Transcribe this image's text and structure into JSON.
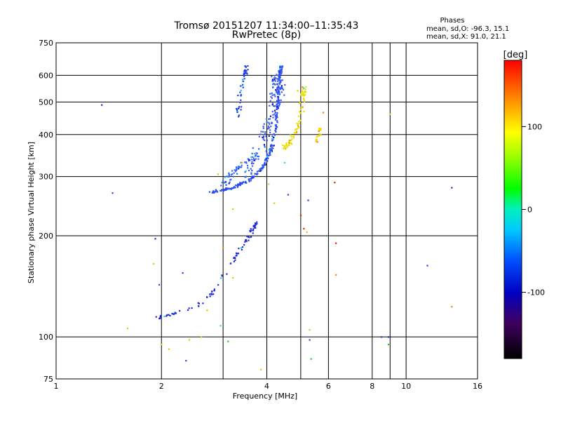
{
  "chart_data": {
    "type": "scatter",
    "title": "Tromsø 20151207 11:34:00–11:35:43",
    "subtitle": "RwPretec (8p)",
    "xlabel": "Frequency [MHz]",
    "ylabel": "Stationary phase Virtual Height [km]",
    "x_scale": "log",
    "y_scale": "log",
    "xlim": [
      1,
      16
    ],
    "ylim": [
      75,
      750
    ],
    "x_ticks": [
      1,
      2,
      4,
      6,
      8,
      10,
      16
    ],
    "x_tick_labels": [
      "1",
      "2",
      "4",
      "6",
      "8",
      "10",
      "16"
    ],
    "y_ticks": [
      75,
      100,
      200,
      300,
      400,
      500,
      600,
      750
    ],
    "y_tick_labels": [
      "75",
      "100",
      "200",
      "300",
      "400",
      "500",
      "600",
      "750"
    ],
    "grid": true,
    "phase_box": {
      "title": "Phases",
      "line_o": "mean, sd,O: -96.3, 15.1",
      "line_x": "mean, sd,X:  91.0, 21.1"
    },
    "colorbar": {
      "label": "[deg]",
      "range": [
        -180,
        180
      ],
      "ticks": [
        100,
        0,
        -100
      ],
      "tick_labels": [
        "100",
        "0",
        "-100"
      ]
    },
    "traces": [
      {
        "name": "o-lower",
        "phase": -110,
        "color": "#1f2be0",
        "n": 90,
        "spread": 0.012,
        "path": [
          [
            1.95,
            114
          ],
          [
            2.15,
            117
          ],
          [
            2.5,
            123
          ],
          [
            2.8,
            135
          ],
          [
            3.1,
            160
          ],
          [
            3.4,
            185
          ],
          [
            3.6,
            205
          ],
          [
            3.75,
            220
          ]
        ]
      },
      {
        "name": "o-upper",
        "phase": -100,
        "color": "#2a4cf0",
        "n": 260,
        "spread": 0.01,
        "path": [
          [
            2.75,
            268
          ],
          [
            3.2,
            278
          ],
          [
            3.6,
            295
          ],
          [
            3.9,
            320
          ],
          [
            4.1,
            360
          ],
          [
            4.25,
            420
          ],
          [
            4.3,
            500
          ],
          [
            4.35,
            600
          ],
          [
            4.4,
            640
          ]
        ]
      },
      {
        "name": "o-cloud",
        "phase": -105,
        "color": "#3a5ef5",
        "n": 140,
        "spread": 0.04,
        "path": [
          [
            3.5,
            300
          ],
          [
            4.0,
            400
          ],
          [
            4.3,
            520
          ],
          [
            4.3,
            600
          ]
        ]
      },
      {
        "name": "o-spread",
        "phase": -95,
        "color": "#3366ff",
        "n": 60,
        "spread": 0.025,
        "path": [
          [
            3.0,
            280
          ],
          [
            3.3,
            320
          ],
          [
            3.8,
            350
          ]
        ]
      },
      {
        "name": "o-side",
        "phase": -105,
        "color": "#1f3fe8",
        "n": 50,
        "spread": 0.012,
        "path": [
          [
            3.3,
            450
          ],
          [
            3.35,
            520
          ],
          [
            3.45,
            600
          ],
          [
            3.5,
            640
          ]
        ]
      },
      {
        "name": "x-yellow",
        "phase": 95,
        "color": "#e8e000",
        "n": 80,
        "spread": 0.018,
        "path": [
          [
            4.4,
            360
          ],
          [
            4.7,
            380
          ],
          [
            4.95,
            430
          ],
          [
            5.1,
            520
          ],
          [
            5.15,
            550
          ]
        ]
      },
      {
        "name": "x-far",
        "phase": 90,
        "color": "#f0d800",
        "n": 18,
        "spread": 0.012,
        "path": [
          [
            5.5,
            380
          ],
          [
            5.7,
            420
          ]
        ]
      }
    ],
    "scatter_points": [
      {
        "x": 1.35,
        "y": 490,
        "c": "#1f2be0"
      },
      {
        "x": 1.45,
        "y": 268,
        "c": "#2244ee"
      },
      {
        "x": 1.05,
        "y": 75,
        "c": "#2244ee"
      },
      {
        "x": 1.6,
        "y": 106,
        "c": "#e8c800"
      },
      {
        "x": 1.92,
        "y": 196,
        "c": "#1f2be0"
      },
      {
        "x": 1.9,
        "y": 165,
        "c": "#e8c800"
      },
      {
        "x": 1.97,
        "y": 143,
        "c": "#2244ee"
      },
      {
        "x": 2.0,
        "y": 95,
        "c": "#e8c800"
      },
      {
        "x": 2.1,
        "y": 92,
        "c": "#e8c800"
      },
      {
        "x": 2.3,
        "y": 155,
        "c": "#2244ee"
      },
      {
        "x": 2.35,
        "y": 85,
        "c": "#2244ee"
      },
      {
        "x": 2.4,
        "y": 98,
        "c": "#e8c800"
      },
      {
        "x": 2.6,
        "y": 100,
        "c": "#e8c800"
      },
      {
        "x": 2.9,
        "y": 305,
        "c": "#e8c800"
      },
      {
        "x": 3.0,
        "y": 185,
        "c": "#e88a00"
      },
      {
        "x": 3.2,
        "y": 240,
        "c": "#e8c800"
      },
      {
        "x": 3.4,
        "y": 330,
        "c": "#e8c800"
      },
      {
        "x": 3.85,
        "y": 80,
        "c": "#e8c800"
      },
      {
        "x": 4.05,
        "y": 285,
        "c": "#e8c800"
      },
      {
        "x": 4.6,
        "y": 265,
        "c": "#2244ee"
      },
      {
        "x": 4.9,
        "y": 540,
        "c": "#e8c800"
      },
      {
        "x": 5.0,
        "y": 230,
        "c": "#e82000"
      },
      {
        "x": 5.1,
        "y": 210,
        "c": "#e82000"
      },
      {
        "x": 5.2,
        "y": 205,
        "c": "#e8c800"
      },
      {
        "x": 5.25,
        "y": 255,
        "c": "#2244ee"
      },
      {
        "x": 5.3,
        "y": 105,
        "c": "#e8c800"
      },
      {
        "x": 5.35,
        "y": 86,
        "c": "#22cc22"
      },
      {
        "x": 5.3,
        "y": 98,
        "c": "#2244ee"
      },
      {
        "x": 5.1,
        "y": 550,
        "c": "#22dddd"
      },
      {
        "x": 5.8,
        "y": 465,
        "c": "#e88a00"
      },
      {
        "x": 6.25,
        "y": 288,
        "c": "#e82000"
      },
      {
        "x": 6.3,
        "y": 190,
        "c": "#e82000"
      },
      {
        "x": 6.3,
        "y": 153,
        "c": "#e88a00"
      },
      {
        "x": 8.5,
        "y": 100,
        "c": "#1f2be0"
      },
      {
        "x": 8.9,
        "y": 100,
        "c": "#1f2be0"
      },
      {
        "x": 8.9,
        "y": 95,
        "c": "#22cc22"
      },
      {
        "x": 9.0,
        "y": 460,
        "c": "#e8c800"
      },
      {
        "x": 11.5,
        "y": 163,
        "c": "#2244ee"
      },
      {
        "x": 13.5,
        "y": 278,
        "c": "#1f2be0"
      },
      {
        "x": 13.5,
        "y": 123,
        "c": "#e88a00"
      },
      {
        "x": 4.5,
        "y": 330,
        "c": "#22dddd"
      },
      {
        "x": 4.2,
        "y": 250,
        "c": "#e8c800"
      },
      {
        "x": 3.2,
        "y": 150,
        "c": "#e8c800"
      },
      {
        "x": 2.7,
        "y": 120,
        "c": "#e8c800"
      },
      {
        "x": 2.95,
        "y": 108,
        "c": "#22dddd"
      },
      {
        "x": 3.1,
        "y": 97,
        "c": "#22cc22"
      }
    ]
  }
}
